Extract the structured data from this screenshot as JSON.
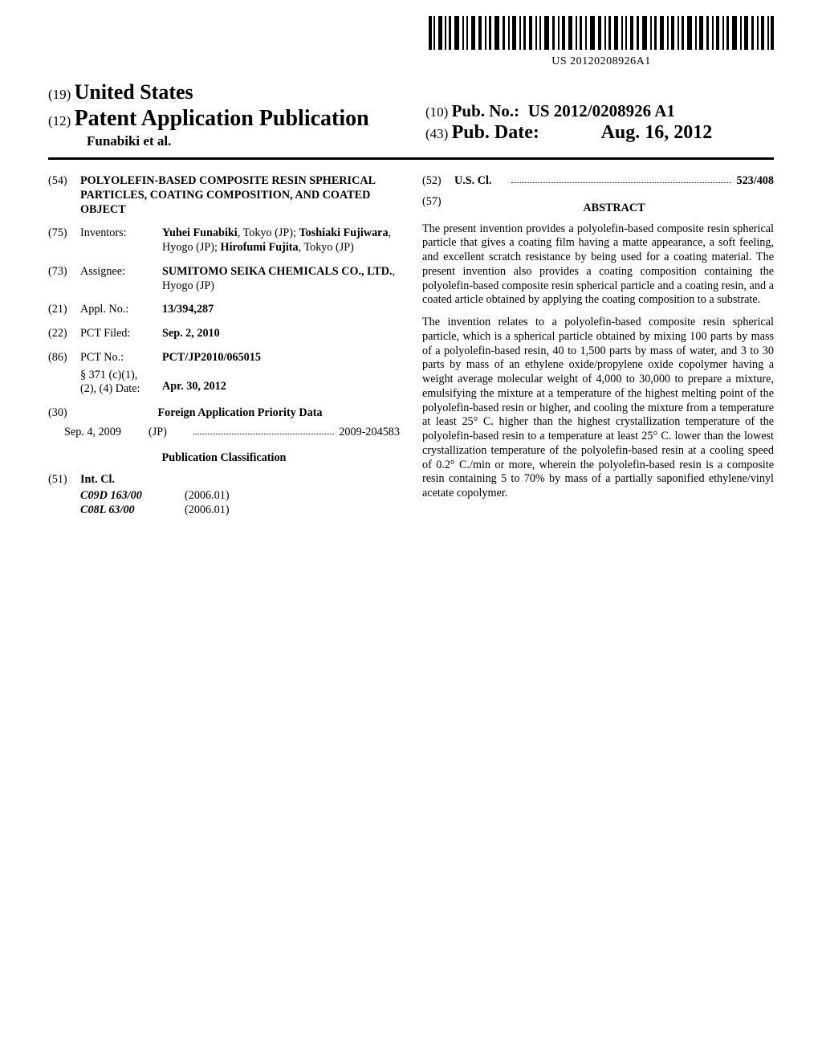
{
  "barcode_label": "US 20120208926A1",
  "header": {
    "code19": "(19)",
    "country": "United States",
    "code12": "(12)",
    "doc_type": "Patent Application Publication",
    "authors_line": "Funabiki et al.",
    "code10": "(10)",
    "pub_no_label": "Pub. No.:",
    "pub_no": "US 2012/0208926 A1",
    "code43": "(43)",
    "pub_date_label": "Pub. Date:",
    "pub_date": "Aug. 16, 2012"
  },
  "left": {
    "f54": {
      "num": "(54)",
      "title": "POLYOLEFIN-BASED COMPOSITE RESIN SPHERICAL PARTICLES, COATING COMPOSITION, AND COATED OBJECT"
    },
    "f75": {
      "num": "(75)",
      "label": "Inventors:",
      "value_html": "<b>Yuhei Funabiki</b>, Tokyo (JP); <b>Toshiaki Fujiwara</b>, Hyogo (JP); <b>Hirofumi Fujita</b>, Tokyo (JP)"
    },
    "f73": {
      "num": "(73)",
      "label": "Assignee:",
      "value_html": "<b>SUMITOMO SEIKA CHEMICALS CO., LTD.</b>, Hyogo (JP)"
    },
    "f21": {
      "num": "(21)",
      "label": "Appl. No.:",
      "value": "13/394,287"
    },
    "f22": {
      "num": "(22)",
      "label": "PCT Filed:",
      "value": "Sep. 2, 2010"
    },
    "f86": {
      "num": "(86)",
      "label": "PCT No.:",
      "value": "PCT/JP2010/065015",
      "sub_label": "§ 371 (c)(1),\n(2), (4) Date:",
      "sub_value": "Apr. 30, 2012"
    },
    "f30": {
      "num": "(30)",
      "heading": "Foreign Application Priority Data",
      "date": "Sep. 4, 2009",
      "country": "(JP)",
      "appno": "2009-204583"
    },
    "pubclass_heading": "Publication Classification",
    "f51": {
      "num": "(51)",
      "label": "Int. Cl.",
      "rows": [
        {
          "code": "C09D 163/00",
          "ver": "(2006.01)"
        },
        {
          "code": "C08L 63/00",
          "ver": "(2006.01)"
        }
      ]
    }
  },
  "right": {
    "f52": {
      "num": "(52)",
      "label": "U.S. Cl.",
      "value": "523/408"
    },
    "f57": {
      "num": "(57)",
      "heading": "ABSTRACT"
    },
    "para1": "The present invention provides a polyolefin-based composite resin spherical particle that gives a coating film having a matte appearance, a soft feeling, and excellent scratch resistance by being used for a coating material. The present invention also provides a coating composition containing the polyolefin-based composite resin spherical particle and a coating resin, and a coated article obtained by applying the coating composition to a substrate.",
    "para2": "The invention relates to a polyolefin-based composite resin spherical particle, which is a spherical particle obtained by mixing 100 parts by mass of a polyolefin-based resin, 40 to 1,500 parts by mass of water, and 3 to 30 parts by mass of an ethylene oxide/propylene oxide copolymer having a weight average molecular weight of 4,000 to 30,000 to prepare a mixture, emulsifying the mixture at a temperature of the highest melting point of the polyolefin-based resin or higher, and cooling the mixture from a temperature at least 25° C. higher than the highest crystallization temperature of the polyolefin-based resin to a temperature at least 25° C. lower than the lowest crystallization temperature of the polyolefin-based resin at a cooling speed of 0.2° C./min or more, wherein the polyolefin-based resin is a composite resin containing 5 to 70% by mass of a partially saponified ethylene/vinyl acetate copolymer."
  }
}
